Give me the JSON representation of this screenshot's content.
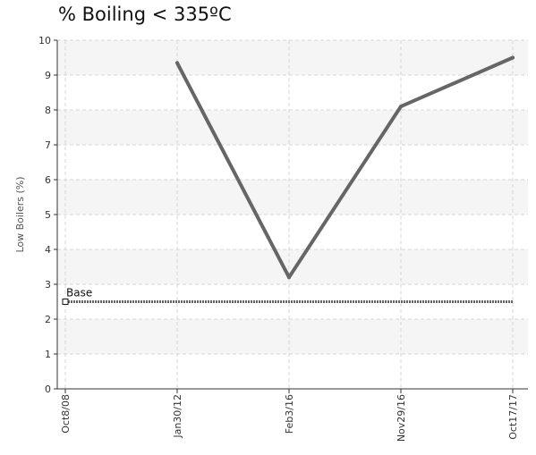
{
  "chart_data": {
    "type": "line",
    "title": "% Boiling < 335ºC",
    "xlabel": "",
    "ylabel": "Low Boilers (%)",
    "categories": [
      "Oct8/08",
      "Jan30/12",
      "Feb3/16",
      "Nov29/16",
      "Oct17/17"
    ],
    "yticks": [
      "0",
      "1",
      "2",
      "3",
      "4",
      "5",
      "6",
      "7",
      "8",
      "9",
      "10"
    ],
    "ylim": [
      0,
      10
    ],
    "grid": true,
    "series": [
      {
        "values": [
          null,
          9.35,
          3.2,
          8.1,
          9.5
        ],
        "color": "#666666",
        "style": "solid"
      }
    ],
    "baseline": {
      "label": "Base",
      "value": 2.5,
      "color": "#666666",
      "style": "dotted"
    }
  }
}
